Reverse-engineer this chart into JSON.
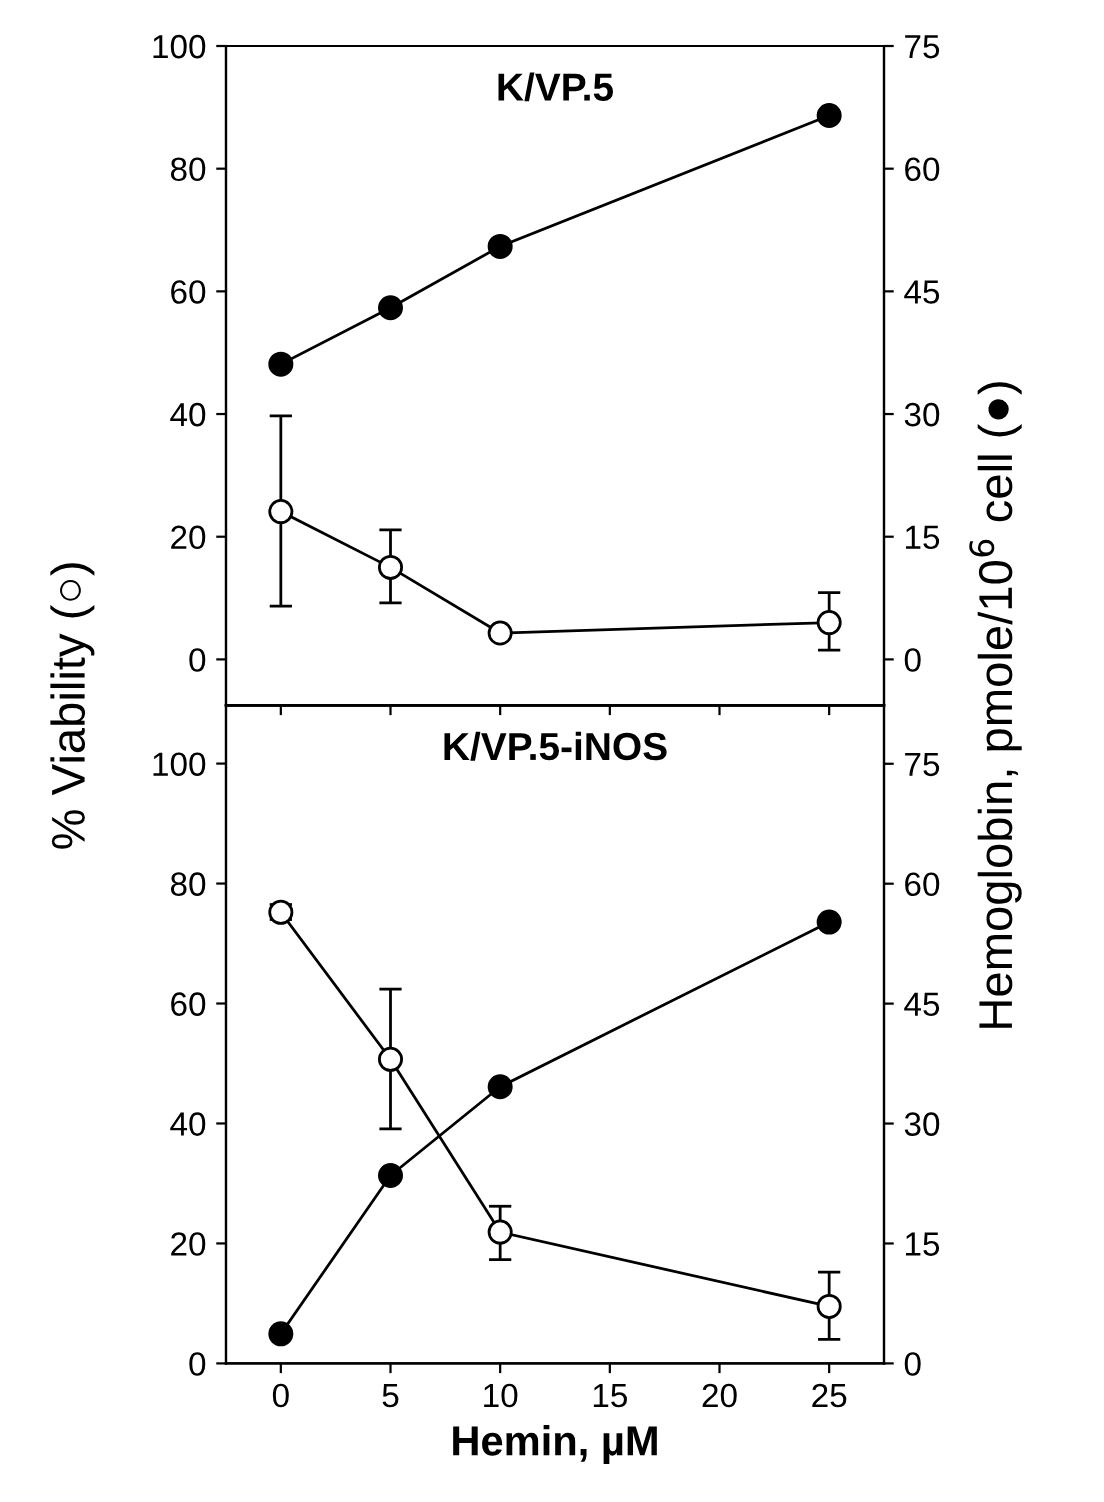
{
  "chart_data": [
    {
      "type": "line",
      "title": "K/VP.5",
      "x": [
        0,
        5,
        10,
        25
      ],
      "xlim": [
        -2.5,
        27.5
      ],
      "xticks": [
        0,
        5,
        10,
        15,
        20,
        25
      ],
      "ylim": [
        -7.5,
        100
      ],
      "yticks": [
        0,
        20,
        40,
        60,
        80,
        100
      ],
      "y2lim": [
        -5.625,
        75
      ],
      "y2ticks": [
        0,
        15,
        30,
        45,
        60,
        75
      ],
      "tick_labels": "y",
      "marker": "circle",
      "line_style": "solid",
      "grid": false,
      "legend": false,
      "series": [
        {
          "color": "#ffffff",
          "values": [
            24.1,
            15.0,
            4.3,
            6.0
          ],
          "errors": [
            [
              8.7,
              39.7
            ],
            [
              9.2,
              21.1
            ],
            null,
            [
              1.5,
              10.9
            ]
          ]
        },
        {
          "color": "#000000",
          "axis": "y2",
          "values": [
            36.1,
            43.0,
            50.5,
            66.5
          ]
        }
      ]
    },
    {
      "type": "line",
      "title": "K/VP.5-iNOS",
      "xlabel": "Hemin, µM",
      "ylabel": "% Viability (○)",
      "y2label": "Hemoglobin, pmole/10$^{6}$ cell (●)",
      "x": [
        0,
        5,
        10,
        25
      ],
      "xlim": [
        -2.5,
        27.5
      ],
      "xticks": [
        0,
        5,
        10,
        15,
        20,
        25
      ],
      "ylim": [
        0,
        109.7
      ],
      "yticks": [
        0,
        20,
        40,
        60,
        80,
        100
      ],
      "y2lim": [
        0,
        82.3
      ],
      "y2ticks": [
        0,
        15,
        30,
        45,
        60,
        75
      ],
      "marker": "circle",
      "line_style": "solid",
      "grid": false,
      "legend": false,
      "series": [
        {
          "color": "#ffffff",
          "values": [
            75.2,
            50.7,
            21.9,
            9.5
          ],
          "errors": [
            [
              74.0,
              76.5
            ],
            [
              39.1,
              62.4
            ],
            [
              17.3,
              26.2
            ],
            [
              4.0,
              15.2
            ]
          ]
        },
        {
          "color": "#000000",
          "axis": "y2",
          "values": [
            3.7,
            23.5,
            34.6,
            55.2
          ]
        }
      ]
    }
  ]
}
